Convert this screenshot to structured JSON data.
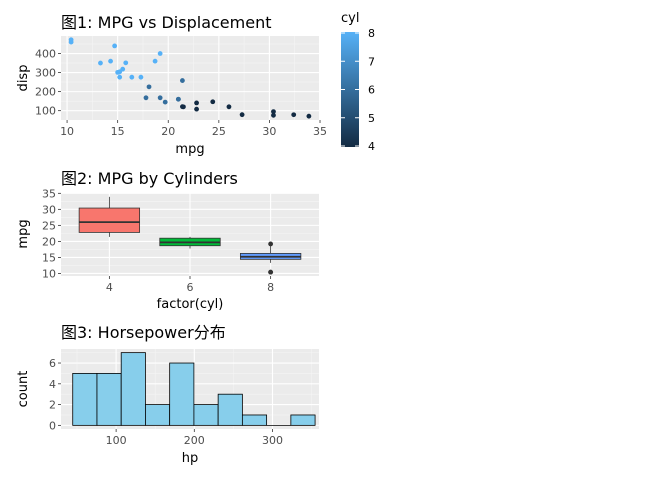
{
  "chart_data": [
    {
      "type": "scatter",
      "title": "图1: MPG vs Displacement",
      "xlabel": "mpg",
      "ylabel": "disp",
      "xlim": [
        9.4,
        34.9
      ],
      "ylim": [
        51,
        492
      ],
      "xticks": [
        10,
        15,
        20,
        25,
        30,
        35
      ],
      "yticks": [
        100,
        200,
        300,
        400
      ],
      "grid": true,
      "legend": {
        "title": "cyl",
        "position": "right",
        "ticks": [
          4,
          5,
          6,
          7,
          8
        ],
        "range": [
          4,
          8
        ],
        "low_color": "#132B43",
        "high_color": "#56B1F7"
      },
      "points": [
        {
          "x": 21.0,
          "y": 160,
          "cyl": 6
        },
        {
          "x": 21.0,
          "y": 160,
          "cyl": 6
        },
        {
          "x": 22.8,
          "y": 108,
          "cyl": 4
        },
        {
          "x": 21.4,
          "y": 258,
          "cyl": 6
        },
        {
          "x": 18.7,
          "y": 360,
          "cyl": 8
        },
        {
          "x": 18.1,
          "y": 225,
          "cyl": 6
        },
        {
          "x": 14.3,
          "y": 360,
          "cyl": 8
        },
        {
          "x": 24.4,
          "y": 146.7,
          "cyl": 4
        },
        {
          "x": 22.8,
          "y": 140.8,
          "cyl": 4
        },
        {
          "x": 19.2,
          "y": 167.6,
          "cyl": 6
        },
        {
          "x": 17.8,
          "y": 167.6,
          "cyl": 6
        },
        {
          "x": 16.4,
          "y": 275.8,
          "cyl": 8
        },
        {
          "x": 17.3,
          "y": 275.8,
          "cyl": 8
        },
        {
          "x": 15.2,
          "y": 275.8,
          "cyl": 8
        },
        {
          "x": 10.4,
          "y": 472,
          "cyl": 8
        },
        {
          "x": 10.4,
          "y": 460,
          "cyl": 8
        },
        {
          "x": 14.7,
          "y": 440,
          "cyl": 8
        },
        {
          "x": 32.4,
          "y": 78.7,
          "cyl": 4
        },
        {
          "x": 30.4,
          "y": 75.7,
          "cyl": 4
        },
        {
          "x": 33.9,
          "y": 71.1,
          "cyl": 4
        },
        {
          "x": 21.5,
          "y": 120.1,
          "cyl": 4
        },
        {
          "x": 15.5,
          "y": 318,
          "cyl": 8
        },
        {
          "x": 15.2,
          "y": 304,
          "cyl": 8
        },
        {
          "x": 13.3,
          "y": 350,
          "cyl": 8
        },
        {
          "x": 19.2,
          "y": 400,
          "cyl": 8
        },
        {
          "x": 27.3,
          "y": 79,
          "cyl": 4
        },
        {
          "x": 26.0,
          "y": 120.3,
          "cyl": 4
        },
        {
          "x": 30.4,
          "y": 95.1,
          "cyl": 4
        },
        {
          "x": 15.8,
          "y": 351,
          "cyl": 8
        },
        {
          "x": 19.7,
          "y": 145,
          "cyl": 6
        },
        {
          "x": 15.0,
          "y": 301,
          "cyl": 8
        },
        {
          "x": 21.4,
          "y": 121,
          "cyl": 4
        }
      ]
    },
    {
      "type": "box",
      "title": "图2: MPG by Cylinders",
      "xlabel": "factor(cyl)",
      "ylabel": "mpg",
      "ylim": [
        9.2,
        35.1
      ],
      "yticks": [
        10,
        15,
        20,
        25,
        30,
        35
      ],
      "grid": true,
      "categories": [
        "4",
        "6",
        "8"
      ],
      "boxes": [
        {
          "label": "4",
          "min": 21.4,
          "q1": 22.8,
          "median": 26.0,
          "q3": 30.4,
          "max": 33.9,
          "outliers": [],
          "color": "#F8766D"
        },
        {
          "label": "6",
          "min": 17.8,
          "q1": 18.65,
          "median": 19.7,
          "q3": 21.0,
          "max": 21.4,
          "outliers": [],
          "color": "#00BA38"
        },
        {
          "label": "8",
          "min": 13.3,
          "q1": 14.4,
          "median": 15.2,
          "q3": 16.25,
          "max": 18.7,
          "outliers": [
            10.4,
            10.4,
            19.2
          ],
          "color": "#619CFF"
        }
      ]
    },
    {
      "type": "histogram",
      "title": "图3: Horsepower分布",
      "xlabel": "hp",
      "ylabel": "count",
      "xlim": [
        29.5,
        359.5
      ],
      "ylim": [
        -0.35,
        7.35
      ],
      "xticks": [
        100,
        200,
        300
      ],
      "yticks": [
        0,
        2,
        4,
        6
      ],
      "grid": true,
      "fill": "#87CEEB",
      "bins": [
        {
          "x0": 44.5,
          "x1": 75.5,
          "count": 5
        },
        {
          "x0": 75.5,
          "x1": 106.5,
          "count": 5
        },
        {
          "x0": 106.5,
          "x1": 137.5,
          "count": 7
        },
        {
          "x0": 137.5,
          "x1": 168.5,
          "count": 2
        },
        {
          "x0": 168.5,
          "x1": 199.5,
          "count": 6
        },
        {
          "x0": 199.5,
          "x1": 230.5,
          "count": 2
        },
        {
          "x0": 230.5,
          "x1": 261.5,
          "count": 3
        },
        {
          "x0": 261.5,
          "x1": 292.5,
          "count": 1
        },
        {
          "x0": 292.5,
          "x1": 323.5,
          "count": 0
        },
        {
          "x0": 323.5,
          "x1": 354.5,
          "count": 1
        }
      ]
    }
  ]
}
